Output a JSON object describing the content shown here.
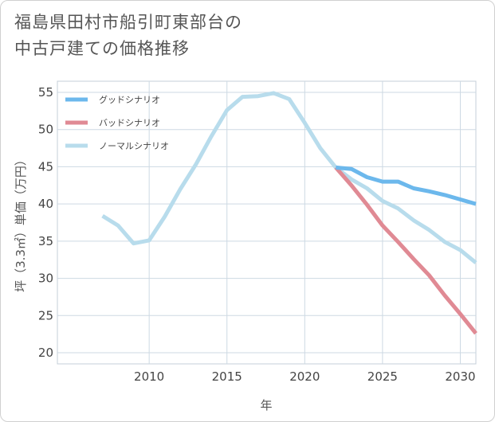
{
  "title_line1": "福島県田村市船引町東部台の",
  "title_line2": "中古戸建ての価格推移",
  "chart_data": {
    "type": "line",
    "xlabel": "年",
    "ylabel": "坪（3.3㎡）単価（万円）",
    "xlim": [
      2004.1,
      2031
    ],
    "ylim": [
      18.5,
      56.5
    ],
    "x_ticks": [
      2010,
      2015,
      2020,
      2025,
      2030
    ],
    "y_ticks": [
      20,
      25,
      30,
      35,
      40,
      45,
      50,
      55
    ],
    "grid": true,
    "legend_position": "top-left",
    "series": [
      {
        "name": "グッドシナリオ",
        "color": "#6cb8ec",
        "x": [
          2022,
          2023,
          2024,
          2025,
          2026,
          2027,
          2028,
          2029,
          2030,
          2031
        ],
        "y": [
          44.9,
          44.7,
          43.6,
          43.0,
          43.0,
          42.1,
          41.7,
          41.2,
          40.6,
          40.0
        ]
      },
      {
        "name": "バッドシナリオ",
        "color": "#e08a94",
        "x": [
          2022,
          2023,
          2024,
          2025,
          2026,
          2027,
          2028,
          2029,
          2030,
          2031
        ],
        "y": [
          44.9,
          42.5,
          39.9,
          37.1,
          34.9,
          32.6,
          30.4,
          27.7,
          25.2,
          22.6
        ]
      },
      {
        "name": "ノーマルシナリオ",
        "color": "#b8dcec",
        "x": [
          2007,
          2008,
          2009,
          2010,
          2011,
          2012,
          2013,
          2014,
          2015,
          2016,
          2017,
          2018,
          2019,
          2020,
          2021,
          2022,
          2023,
          2024,
          2025,
          2026,
          2027,
          2028,
          2029,
          2030,
          2031
        ],
        "y": [
          38.4,
          37.1,
          34.7,
          35.1,
          38.3,
          42.0,
          45.3,
          49.1,
          52.6,
          54.4,
          54.5,
          54.9,
          54.1,
          50.9,
          47.5,
          44.9,
          43.3,
          42.1,
          40.4,
          39.4,
          37.8,
          36.5,
          34.9,
          33.8,
          32.1
        ]
      }
    ]
  }
}
